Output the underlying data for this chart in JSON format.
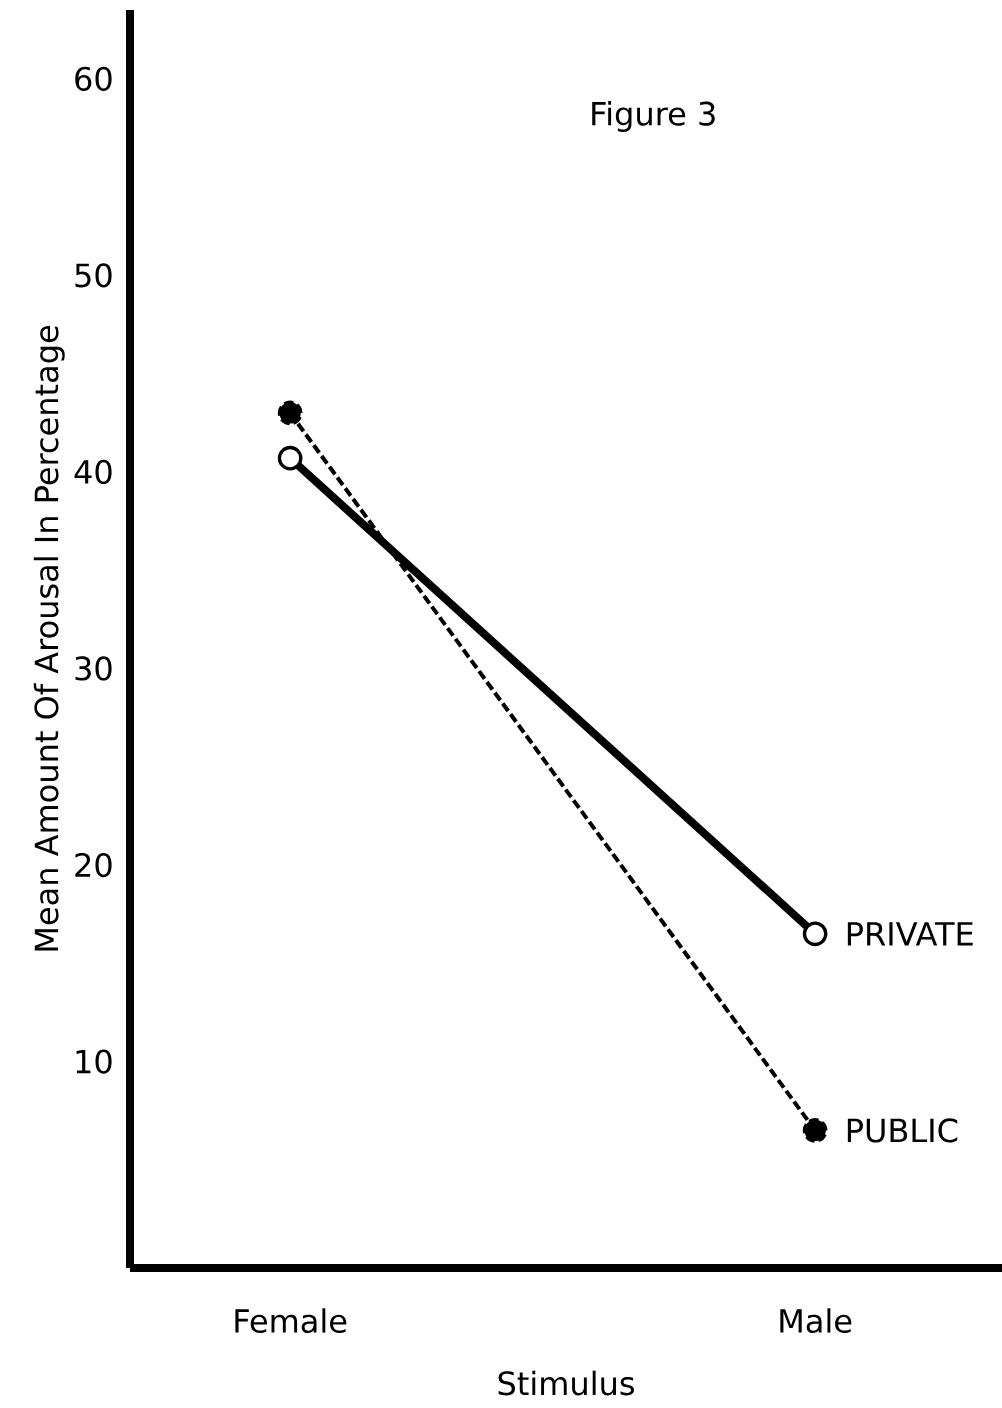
{
  "chart_data": {
    "type": "line",
    "title": "Figure 3",
    "xlabel": "Stimulus",
    "ylabel": "Mean Amount Of Arousal In Percentage",
    "categories": [
      "Female",
      "Male"
    ],
    "series": [
      {
        "name": "PRIVATE",
        "color": "#000000",
        "values": [
          40.7,
          16.5
        ],
        "line_style": "solid"
      },
      {
        "name": "PUBLIC",
        "color": "#000000",
        "values": [
          43.0,
          6.5
        ],
        "line_style": "dashed"
      }
    ],
    "ylim": [
      -0.5,
      63.5
    ],
    "yticks": [
      10,
      20,
      30,
      40,
      50,
      60
    ],
    "grid": false,
    "legend": "right",
    "marker": "circle"
  }
}
